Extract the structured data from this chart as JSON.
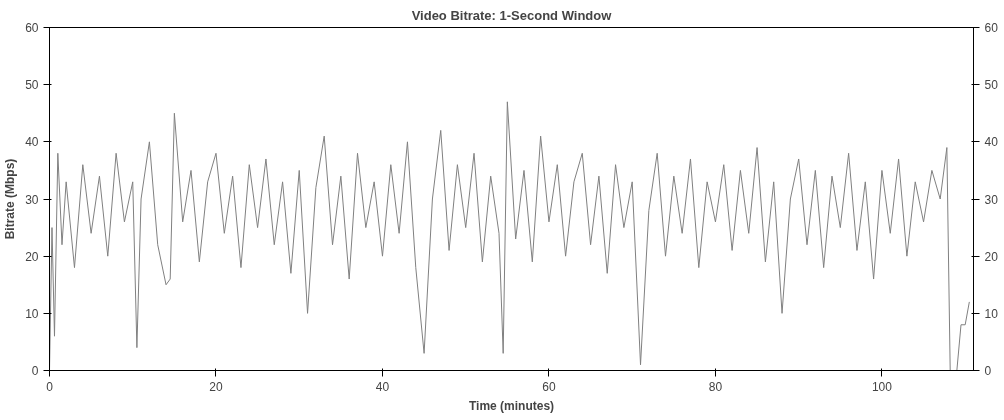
{
  "chart_data": {
    "type": "line",
    "title": "Video Bitrate: 1-Second Window",
    "xlabel": "Time (minutes)",
    "ylabel": "Bitrate (Mbps)",
    "xlim": [
      0,
      111
    ],
    "xticks": [
      0,
      20,
      40,
      60,
      80,
      100
    ],
    "ylim": [
      0,
      60
    ],
    "yticks": [
      0,
      10,
      20,
      30,
      40,
      50,
      60
    ],
    "y2lim": [
      0,
      60
    ],
    "y2ticks": [
      0,
      10,
      20,
      30,
      40,
      50,
      60
    ],
    "series": [
      {
        "color": "#808080",
        "x": [
          0,
          0.3,
          0.6,
          1,
          1.5,
          2,
          3,
          4,
          5,
          6,
          7,
          8,
          9,
          10,
          10.5,
          11,
          12,
          13,
          14,
          14.5,
          15,
          16,
          17,
          18,
          19,
          20,
          21,
          22,
          23,
          24,
          25,
          26,
          27,
          28,
          29,
          30,
          31,
          32,
          33,
          34,
          35,
          36,
          37,
          38,
          39,
          40,
          41,
          42,
          43,
          44,
          45,
          46,
          47,
          48,
          49,
          50,
          51,
          52,
          53,
          54,
          54.5,
          55,
          56,
          57,
          58,
          59,
          60,
          61,
          62,
          63,
          64,
          65,
          66,
          67,
          68,
          69,
          70,
          71,
          72,
          73,
          74,
          75,
          76,
          77,
          78,
          79,
          80,
          81,
          82,
          83,
          84,
          85,
          86,
          87,
          88,
          89,
          90,
          91,
          92,
          93,
          94,
          95,
          96,
          97,
          98,
          99,
          100,
          101,
          102,
          103,
          104,
          105,
          106,
          107,
          107.8,
          108.2,
          109,
          109.5,
          110,
          110.5
        ],
        "values": [
          0,
          25,
          6,
          38,
          22,
          33,
          18,
          36,
          24,
          34,
          20,
          38,
          26,
          33,
          4,
          30,
          40,
          22,
          15,
          16,
          45,
          26,
          35,
          19,
          33,
          38,
          24,
          34,
          18,
          36,
          25,
          37,
          22,
          33,
          17,
          35,
          10,
          32,
          41,
          22,
          34,
          16,
          38,
          25,
          33,
          20,
          36,
          24,
          40,
          18,
          3,
          30,
          42,
          21,
          36,
          25,
          38,
          19,
          34,
          24,
          3,
          47,
          23,
          35,
          19,
          41,
          26,
          36,
          20,
          33,
          38,
          22,
          34,
          17,
          36,
          25,
          33,
          1,
          28,
          38,
          20,
          34,
          24,
          37,
          18,
          33,
          26,
          36,
          21,
          35,
          24,
          39,
          19,
          33,
          10,
          30,
          37,
          22,
          35,
          18,
          34,
          25,
          38,
          21,
          33,
          16,
          35,
          24,
          37,
          20,
          33,
          26,
          35,
          30,
          39,
          0,
          0,
          8,
          8,
          12
        ]
      }
    ]
  }
}
